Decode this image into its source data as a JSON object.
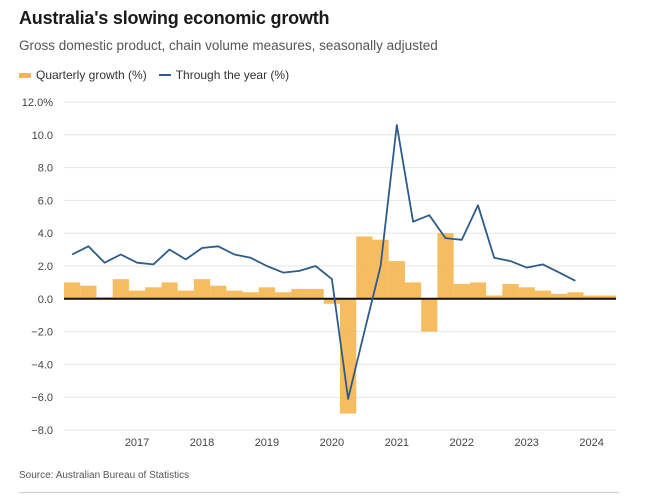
{
  "header": {
    "title": "Australia's slowing economic growth",
    "subtitle": "Gross domestic product, chain volume measures, seasonally adjusted"
  },
  "footer": {
    "source": "Source: Australian Bureau of Statistics"
  },
  "colors": {
    "bar": "#F5B54F",
    "line": "#2E5C8A",
    "grid": "#e6e6e6",
    "zero": "#111111"
  },
  "chart_data": {
    "type": "bar+line",
    "legend_placement": "top-left",
    "grid": true,
    "ylim": [
      -8,
      12
    ],
    "ytick_labels": [
      "12.0%",
      "10.0",
      "8.0",
      "6.0",
      "4.0",
      "2.0",
      "0.0",
      "−2.0",
      "−4.0",
      "−6.0",
      "−8.0"
    ],
    "ytick_values": [
      12,
      10,
      8,
      6,
      4,
      2,
      0,
      -2,
      -4,
      -6,
      -8
    ],
    "xtick_labels": [
      "2017",
      "2018",
      "2019",
      "2020",
      "2021",
      "2022",
      "2023",
      "2024"
    ],
    "quarters": [
      "2016-Q1",
      "2016-Q2",
      "2016-Q3",
      "2016-Q4",
      "2017-Q1",
      "2017-Q2",
      "2017-Q3",
      "2017-Q4",
      "2018-Q1",
      "2018-Q2",
      "2018-Q3",
      "2018-Q4",
      "2019-Q1",
      "2019-Q2",
      "2019-Q3",
      "2019-Q4",
      "2020-Q1",
      "2020-Q2",
      "2020-Q3",
      "2020-Q4",
      "2021-Q1",
      "2021-Q2",
      "2021-Q3",
      "2021-Q4",
      "2022-Q1",
      "2022-Q2",
      "2022-Q3",
      "2022-Q4",
      "2023-Q1",
      "2023-Q2",
      "2023-Q3",
      "2023-Q4",
      "2024-Q1",
      "2024-Q2"
    ],
    "series": [
      {
        "name": "Quarterly growth (%)",
        "kind": "bar",
        "values": [
          1.0,
          0.8,
          0.1,
          1.2,
          0.5,
          0.7,
          1.0,
          0.5,
          1.2,
          0.8,
          0.5,
          0.4,
          0.7,
          0.4,
          0.6,
          0.6,
          -0.3,
          -7.0,
          3.8,
          3.6,
          2.3,
          1.0,
          -2.0,
          4.0,
          0.9,
          1.0,
          0.2,
          0.9,
          0.7,
          0.5,
          0.3,
          0.4,
          0.2,
          0.2
        ]
      },
      {
        "name": "Through the year (%)",
        "kind": "line",
        "values": [
          2.7,
          3.2,
          2.2,
          2.7,
          2.2,
          2.1,
          3.0,
          2.4,
          3.1,
          3.2,
          2.7,
          2.5,
          2.0,
          1.6,
          1.7,
          2.0,
          1.2,
          -6.1,
          -2.0,
          2.0,
          10.6,
          4.7,
          5.1,
          3.7,
          3.6,
          5.7,
          2.5,
          2.3,
          1.9,
          2.1,
          1.6,
          1.1,
          null,
          null
        ]
      }
    ]
  }
}
